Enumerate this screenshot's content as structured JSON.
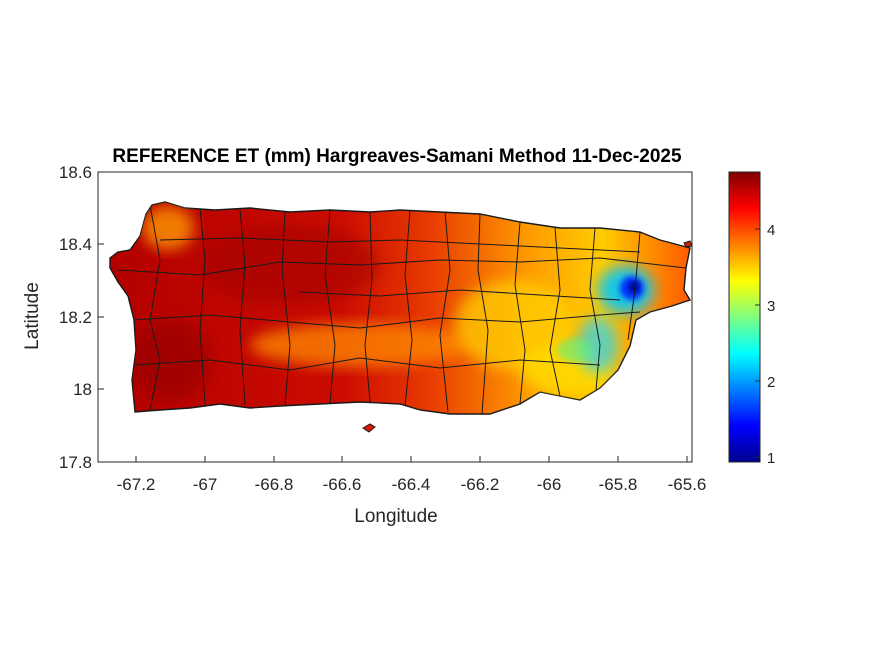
{
  "title": "REFERENCE ET (mm) Hargreaves-Samani Method  11-Dec-2025",
  "xlabel": "Longitude",
  "ylabel": "Latitude",
  "x_ticks": [
    "-67.2",
    "-67",
    "-66.8",
    "-66.6",
    "-66.4",
    "-66.2",
    "-66",
    "-65.8",
    "-65.6"
  ],
  "y_ticks": [
    "18.6",
    "18.4",
    "18.2",
    "18",
    "17.8"
  ],
  "colorbar": {
    "colormap": "jet",
    "range": [
      1,
      4.8
    ],
    "ticks": [
      "1",
      "2",
      "3",
      "4"
    ]
  },
  "chart_data": {
    "type": "heatmap",
    "title": "REFERENCE ET (mm) Hargreaves-Samani Method  11-Dec-2025",
    "xlabel": "Longitude",
    "ylabel": "Latitude",
    "xlim": [
      -67.3,
      -65.58
    ],
    "ylim": [
      17.8,
      18.6
    ],
    "region": "Puerto Rico",
    "value_label": "REFERENCE ET (mm)",
    "value_range": [
      1,
      4.8
    ],
    "colormap": "jet",
    "grid": false,
    "colorbar_position": "right"
  }
}
